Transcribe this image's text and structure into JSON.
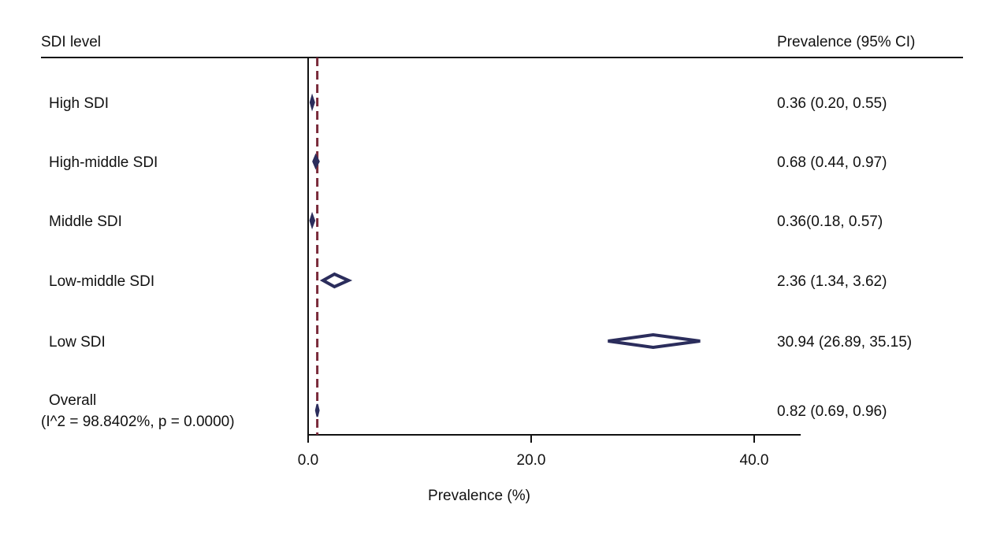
{
  "chart_data": {
    "type": "forest",
    "header_left": "SDI level",
    "header_right": "Prevalence (95% CI)",
    "xlabel": "Prevalence (%)",
    "xlim": [
      0,
      44
    ],
    "xticks": [
      0,
      20,
      40
    ],
    "xtick_labels": [
      "0.0",
      "20.0",
      "40.0"
    ],
    "reference_line_value": 0.82,
    "rows": [
      {
        "label": "High SDI",
        "estimate": 0.36,
        "lower": 0.2,
        "upper": 0.55,
        "ci_text": "0.36 (0.20, 0.55)",
        "filled": true
      },
      {
        "label": "High-middle SDI",
        "estimate": 0.68,
        "lower": 0.44,
        "upper": 0.97,
        "ci_text": "0.68 (0.44, 0.97)",
        "filled": true
      },
      {
        "label": "Middle SDI",
        "estimate": 0.36,
        "lower": 0.18,
        "upper": 0.57,
        "ci_text": "0.36(0.18, 0.57)",
        "filled": true
      },
      {
        "label": "Low-middle SDI",
        "estimate": 2.36,
        "lower": 1.34,
        "upper": 3.62,
        "ci_text": "2.36 (1.34, 3.62)",
        "filled": false
      },
      {
        "label": "Low SDI",
        "estimate": 30.94,
        "lower": 26.89,
        "upper": 35.15,
        "ci_text": "30.94 (26.89, 35.15)",
        "filled": false
      },
      {
        "label": "Overall",
        "sublabel": "(I^2 = 98.8402%, p = 0.0000)",
        "estimate": 0.82,
        "lower": 0.69,
        "upper": 0.96,
        "ci_text": "0.82 (0.69, 0.96)",
        "filled": true
      }
    ],
    "colors": {
      "diamond": "#2b2d5c",
      "reference_line": "#7a2a3a",
      "axis": "#111111"
    }
  }
}
